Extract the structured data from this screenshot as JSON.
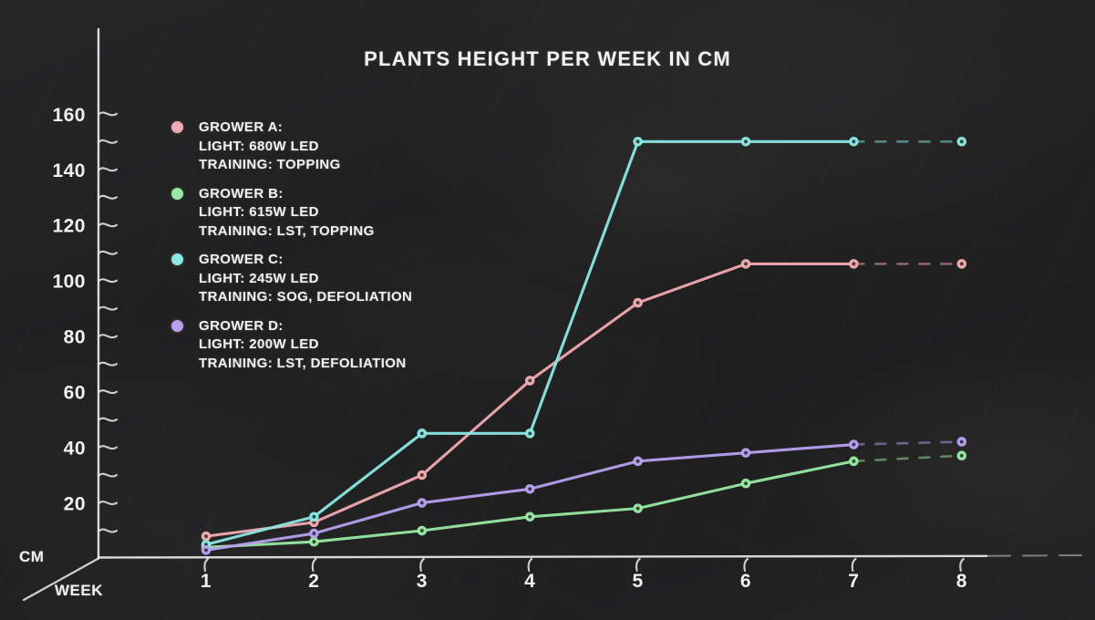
{
  "title": "PLANTS HEIGHT PER WEEK IN CM",
  "colors": {
    "background": "#202021",
    "text": "#f2f2f2",
    "axis": "#ededed"
  },
  "axes": {
    "y_unit_label": "CM",
    "x_unit_label": "WEEK",
    "y_tick_labels": [
      20,
      40,
      60,
      80,
      100,
      120,
      140,
      160
    ],
    "y_minor_tick_step": 10,
    "x_tick_labels": [
      1,
      2,
      3,
      4,
      5,
      6,
      7,
      8
    ]
  },
  "legend": {
    "items": [
      {
        "name": "GROWER A:",
        "light": "LIGHT: 680W LED",
        "training": "TRAINING: TOPPING"
      },
      {
        "name": "GROWER B:",
        "light": "LIGHT: 615W LED",
        "training": "TRAINING: LST, TOPPING"
      },
      {
        "name": "GROWER C:",
        "light": "LIGHT: 245W LED",
        "training": "TRAINING: SOG, DEFOLIATION"
      },
      {
        "name": "GROWER D:",
        "light": "LIGHT: 200W LED",
        "training": "TRAINING: LST, DEFOLIATION"
      }
    ]
  },
  "chart_data": {
    "type": "line",
    "title": "PLANTS HEIGHT PER WEEK IN CM",
    "xlabel": "WEEK",
    "ylabel": "CM",
    "x": [
      1,
      2,
      3,
      4,
      5,
      6,
      7,
      8
    ],
    "ylim": [
      0,
      165
    ],
    "grid": false,
    "legend_position": "upper-left",
    "series": [
      {
        "name": "GROWER A",
        "light": "680W LED",
        "training": "TOPPING",
        "color": "#f2aab1",
        "values": [
          8,
          13,
          30,
          64,
          92,
          106,
          106,
          106
        ]
      },
      {
        "name": "GROWER B",
        "light": "615W LED",
        "training": "LST, TOPPING",
        "color": "#98e9a2",
        "values": [
          4,
          6,
          10,
          15,
          18,
          27,
          35,
          37
        ]
      },
      {
        "name": "GROWER C",
        "light": "245W LED",
        "training": "SOG, DEFOLIATION",
        "color": "#8ae8e1",
        "values": [
          5,
          15,
          45,
          45,
          150,
          150,
          150,
          150
        ]
      },
      {
        "name": "GROWER D",
        "light": "200W LED",
        "training": "LST, DEFOLIATION",
        "color": "#b6a1ef",
        "values": [
          3,
          9,
          20,
          25,
          35,
          38,
          41,
          42
        ]
      }
    ]
  }
}
